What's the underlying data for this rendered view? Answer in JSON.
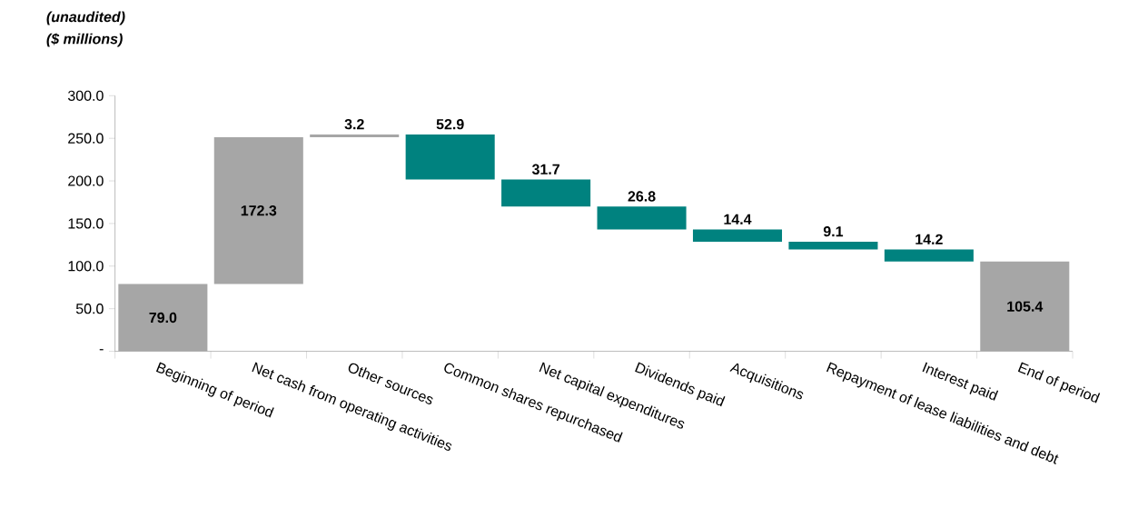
{
  "chart_data": {
    "type": "bar",
    "annotations": [
      "(unaudited)",
      "($ millions)"
    ],
    "categories": [
      "Beginning of period",
      "Net cash from operating activities",
      "Other sources",
      "Common shares repurchased",
      "Net capital expenditures",
      "Dividends paid",
      "Acquisitions",
      "Repayment of lease liabilities and debt",
      "Interest paid",
      "End of period"
    ],
    "values": [
      79.0,
      172.3,
      3.2,
      52.9,
      31.7,
      26.8,
      14.4,
      9.1,
      14.2,
      105.4
    ],
    "base": [
      0,
      79.0,
      251.3,
      201.6,
      169.9,
      143.1,
      128.7,
      119.6,
      105.4,
      0
    ],
    "colors": [
      "#a6a6a6",
      "#a6a6a6",
      "#a6a6a6",
      "#00827f",
      "#00827f",
      "#00827f",
      "#00827f",
      "#00827f",
      "#00827f",
      "#a6a6a6"
    ],
    "value_labels": [
      "79.0",
      "172.3",
      "3.2",
      "52.9",
      "31.7",
      "26.8",
      "14.4",
      "9.1",
      "14.2",
      "105.4"
    ],
    "ylim": [
      0,
      300
    ],
    "yticks": [
      {
        "value": 0,
        "label": "-"
      },
      {
        "value": 50,
        "label": "50.0"
      },
      {
        "value": 100,
        "label": "100.0"
      },
      {
        "value": 150,
        "label": "150.0"
      },
      {
        "value": 200,
        "label": "200.0"
      },
      {
        "value": 250,
        "label": "250.0"
      },
      {
        "value": 300,
        "label": "300.0"
      }
    ]
  }
}
